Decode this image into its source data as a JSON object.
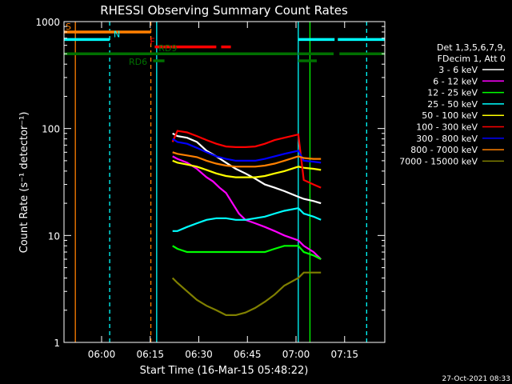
{
  "chart_data": {
    "type": "line",
    "title": "RHESSI Observing Summary Count Rates",
    "xlabel": "Start Time (16-Mar-15 05:48:22)",
    "ylabel": "Count Rate (s⁻¹ detector⁻¹)",
    "x_unit": "minutes after 05:48:22",
    "xlim": [
      0,
      99
    ],
    "ylim": [
      1,
      1000
    ],
    "y_scale": "log",
    "x_ticks": [
      {
        "x": 11.6,
        "label": "06:00"
      },
      {
        "x": 26.6,
        "label": "06:15"
      },
      {
        "x": 41.6,
        "label": "06:30"
      },
      {
        "x": 56.6,
        "label": "06:45"
      },
      {
        "x": 71.6,
        "label": "07:00"
      },
      {
        "x": 86.6,
        "label": "07:15"
      }
    ],
    "y_ticks": [
      {
        "y": 1,
        "label": "1"
      },
      {
        "y": 10,
        "label": "10"
      },
      {
        "y": 100,
        "label": "100"
      },
      {
        "y": 1000,
        "label": "1000"
      }
    ],
    "legend": {
      "header": [
        "Det 1,3,5,6,7,9,",
        "FDecim 1, Att 0"
      ],
      "placement": "right"
    },
    "series": [
      {
        "name": "3 - 6 keV",
        "color": "#ffffff",
        "x": [
          33.5,
          35,
          38,
          41,
          44,
          47,
          50,
          53,
          56,
          59,
          62,
          65,
          68,
          72.3,
          74,
          77,
          79.3
        ],
        "y": [
          90,
          85,
          82,
          75,
          62,
          55,
          48,
          42,
          38,
          34,
          30,
          28,
          26,
          23,
          22,
          21,
          20
        ]
      },
      {
        "name": "6 - 12 keV",
        "color": "#ff00ff",
        "x": [
          33.5,
          35,
          38,
          41,
          44,
          46,
          48,
          50,
          52,
          54,
          56,
          59,
          62,
          65,
          68,
          72.3,
          74,
          77,
          79.3
        ],
        "y": [
          55,
          52,
          48,
          42,
          35,
          32,
          28,
          25,
          20,
          16,
          14,
          13,
          12,
          11,
          10,
          9,
          8,
          7,
          6
        ]
      },
      {
        "name": "12 - 25 keV",
        "color": "#00ff00",
        "x": [
          33.5,
          35,
          38,
          41,
          44,
          47,
          50,
          53,
          56,
          59,
          62,
          65,
          68,
          72.3,
          74,
          77,
          79.3
        ],
        "y": [
          8,
          7.5,
          7,
          7,
          7,
          7,
          7,
          7,
          7,
          7,
          7,
          7.5,
          8,
          8,
          7,
          6.5,
          6
        ]
      },
      {
        "name": "25 - 50 keV",
        "color": "#00ffff",
        "x": [
          33.5,
          35,
          38,
          41,
          44,
          47,
          50,
          53,
          56,
          59,
          62,
          65,
          68,
          72.3,
          74,
          77,
          79.3
        ],
        "y": [
          11,
          11,
          12,
          13,
          14,
          14.5,
          14.5,
          14,
          14,
          14.5,
          15,
          16,
          17,
          18,
          16,
          15,
          14
        ]
      },
      {
        "name": "50 - 100 keV",
        "color": "#ffff00",
        "x": [
          33.5,
          35,
          38,
          41,
          44,
          47,
          50,
          53,
          56,
          59,
          62,
          65,
          68,
          72.3,
          74,
          77,
          79.3
        ],
        "y": [
          50,
          48,
          46,
          44,
          41,
          38,
          36,
          35,
          35,
          35,
          36,
          38,
          40,
          44,
          43,
          42,
          41
        ]
      },
      {
        "name": "100 - 300 keV",
        "color": "#ff0000",
        "x": [
          33.5,
          35,
          38,
          41,
          44,
          47,
          50,
          53,
          56,
          59,
          62,
          65,
          68,
          72.3,
          74,
          77,
          79.3
        ],
        "y": [
          75,
          95,
          92,
          85,
          78,
          72,
          68,
          67,
          67,
          68,
          72,
          78,
          82,
          88,
          33,
          30,
          28
        ]
      },
      {
        "name": "300 - 800 keV",
        "color": "#0000ff",
        "x": [
          33.5,
          35,
          38,
          41,
          44,
          47,
          50,
          53,
          56,
          59,
          62,
          65,
          68,
          72.3,
          74,
          77,
          79.3
        ],
        "y": [
          80,
          75,
          72,
          66,
          60,
          55,
          52,
          50,
          50,
          50,
          52,
          55,
          58,
          62,
          50,
          49,
          48
        ]
      },
      {
        "name": "800 - 7000 keV",
        "color": "#ff8000",
        "x": [
          33.5,
          35,
          38,
          41,
          44,
          47,
          50,
          53,
          56,
          59,
          62,
          65,
          68,
          72.3,
          74,
          77,
          79.3
        ],
        "y": [
          60,
          58,
          56,
          54,
          50,
          47,
          45,
          44,
          44,
          44,
          45,
          47,
          50,
          55,
          53,
          52,
          52
        ]
      },
      {
        "name": "7000 - 15000 keV",
        "color": "#808000",
        "x": [
          33.5,
          35,
          38,
          41,
          44,
          47,
          50,
          53,
          56,
          59,
          62,
          65,
          68,
          72.3,
          74,
          77,
          79.3
        ],
        "y": [
          4,
          3.6,
          3,
          2.5,
          2.2,
          2,
          1.8,
          1.8,
          1.9,
          2.1,
          2.4,
          2.8,
          3.4,
          4,
          4.5,
          4.5,
          4.5
        ]
      }
    ],
    "state_bars": [
      {
        "label": "S",
        "color": "#ff8000",
        "y": 800,
        "segments": [
          [
            0,
            26.8
          ]
        ],
        "label_x": 0.5
      },
      {
        "label": "N",
        "color": "#00ffff",
        "y": 680,
        "segments": [
          [
            0,
            14.1
          ],
          [
            72.3,
            83.5
          ],
          [
            84.5,
            99
          ]
        ],
        "label_x": 15.3
      },
      {
        "label": "F",
        "color": "#ff0000",
        "y": 580,
        "segments": [
          [
            28,
            47
          ],
          [
            48.5,
            51.5
          ]
        ],
        "label_x": 26.5
      },
      {
        "label": "RD9",
        "color": "#007000",
        "y": 500,
        "segments": [
          [
            0,
            72
          ],
          [
            72.3,
            83.2
          ],
          [
            85,
            99
          ]
        ],
        "label_x": 29.2
      },
      {
        "label": "RD6",
        "color": "#007000",
        "y": 430,
        "segments": [
          [
            27.5,
            31
          ],
          [
            72.3,
            78
          ]
        ],
        "label_x": 20
      }
    ],
    "vertical_lines": [
      {
        "x": 3.5,
        "color": "#ff8000",
        "style": "solid"
      },
      {
        "x": 14.1,
        "color": "#00ffff",
        "style": "dashed"
      },
      {
        "x": 26.8,
        "color": "#ff8000",
        "style": "dashed"
      },
      {
        "x": 28.6,
        "color": "#00ffff",
        "style": "solid"
      },
      {
        "x": 72.3,
        "color": "#00ffff",
        "style": "solid"
      },
      {
        "x": 75.9,
        "color": "#00ff00",
        "style": "solid"
      },
      {
        "x": 93.4,
        "color": "#00ffff",
        "style": "dashed"
      }
    ]
  },
  "footer": {
    "timestamp": "27-Oct-2021 08:33"
  }
}
